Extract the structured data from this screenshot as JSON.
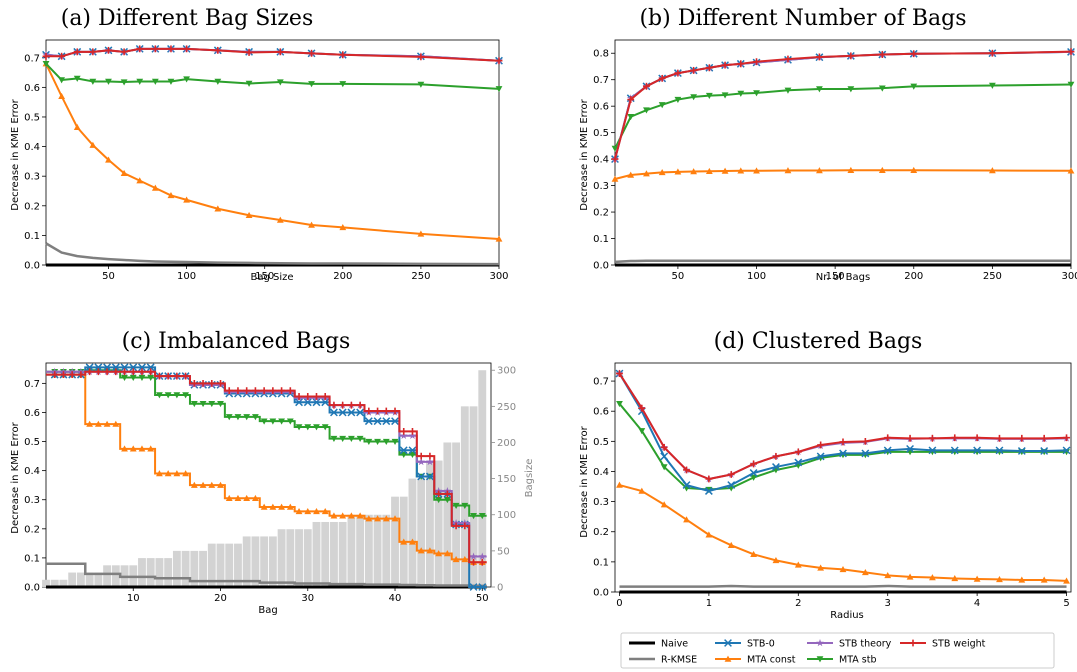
{
  "colors": {
    "Naive": "#000000",
    "R-KMSE": "#7f7f7f",
    "STB-0": "#1f77b4",
    "MTA const": "#ff7f0e",
    "STB theory": "#9467bd",
    "MTA stb": "#2ca02c",
    "STB weight": "#d62728",
    "bagsize_bars": "#d3d3d3"
  },
  "markers": {
    "Naive": "none",
    "R-KMSE": "none",
    "STB-0": "x",
    "MTA const": "triangle-up",
    "STB theory": "star",
    "MTA stb": "triangle-down",
    "STB weight": "plus"
  },
  "legend": {
    "placement": "bottom-right, below panel (d)",
    "items": [
      "Naive",
      "R-KMSE",
      "STB-0",
      "MTA const",
      "STB theory",
      "MTA stb",
      "STB weight"
    ]
  },
  "chart_data": [
    {
      "type": "line",
      "title": "(a) Different Bag Sizes",
      "xlabel": "Bag Size",
      "ylabel": "Decrease in KME Error",
      "xlim": [
        10,
        300
      ],
      "ylim": [
        0,
        0.76
      ],
      "xticks": [
        50,
        100,
        150,
        200,
        250,
        300
      ],
      "yticks": [
        0.0,
        0.1,
        0.2,
        0.3,
        0.4,
        0.5,
        0.6,
        0.7
      ],
      "x": [
        10,
        20,
        30,
        40,
        50,
        60,
        70,
        80,
        90,
        100,
        120,
        140,
        160,
        180,
        200,
        250,
        300
      ],
      "series": [
        {
          "name": "Naive",
          "values": [
            0,
            0,
            0,
            0,
            0,
            0,
            0,
            0,
            0,
            0,
            0,
            0,
            0,
            0,
            0,
            0,
            0
          ]
        },
        {
          "name": "R-KMSE",
          "values": [
            0.073,
            0.042,
            0.03,
            0.024,
            0.02,
            0.017,
            0.014,
            0.012,
            0.011,
            0.01,
            0.008,
            0.007,
            0.006,
            0.005,
            0.005,
            0.004,
            0.003
          ]
        },
        {
          "name": "STB-0",
          "values": [
            0.71,
            0.705,
            0.72,
            0.72,
            0.725,
            0.72,
            0.73,
            0.73,
            0.73,
            0.73,
            0.725,
            0.72,
            0.72,
            0.715,
            0.71,
            0.705,
            0.69
          ]
        },
        {
          "name": "MTA const",
          "values": [
            0.68,
            0.57,
            0.465,
            0.405,
            0.355,
            0.31,
            0.285,
            0.26,
            0.235,
            0.22,
            0.19,
            0.168,
            0.152,
            0.135,
            0.127,
            0.105,
            0.088
          ]
        },
        {
          "name": "STB theory",
          "values": [
            0.71,
            0.705,
            0.72,
            0.72,
            0.725,
            0.72,
            0.73,
            0.73,
            0.73,
            0.73,
            0.725,
            0.72,
            0.72,
            0.715,
            0.71,
            0.705,
            0.69
          ]
        },
        {
          "name": "MTA stb",
          "values": [
            0.68,
            0.625,
            0.63,
            0.62,
            0.62,
            0.618,
            0.62,
            0.62,
            0.62,
            0.628,
            0.62,
            0.613,
            0.618,
            0.612,
            0.612,
            0.61,
            0.595
          ]
        },
        {
          "name": "STB weight",
          "values": [
            0.705,
            0.705,
            0.72,
            0.72,
            0.725,
            0.72,
            0.73,
            0.73,
            0.73,
            0.73,
            0.725,
            0.718,
            0.72,
            0.715,
            0.71,
            0.703,
            0.69
          ]
        }
      ]
    },
    {
      "type": "line",
      "title": "(b) Different Number of Bags",
      "xlabel": "Nr. of Bags",
      "ylabel": "Decrease in KME Error",
      "xlim": [
        10,
        300
      ],
      "ylim": [
        0,
        0.85
      ],
      "xticks": [
        50,
        100,
        150,
        200,
        250,
        300
      ],
      "yticks": [
        0.0,
        0.1,
        0.2,
        0.3,
        0.4,
        0.5,
        0.6,
        0.7,
        0.8
      ],
      "x": [
        10,
        20,
        30,
        40,
        50,
        60,
        70,
        80,
        90,
        100,
        120,
        140,
        160,
        180,
        200,
        250,
        300
      ],
      "series": [
        {
          "name": "Naive",
          "values": [
            0,
            0,
            0,
            0,
            0,
            0,
            0,
            0,
            0,
            0,
            0,
            0,
            0,
            0,
            0,
            0,
            0
          ]
        },
        {
          "name": "R-KMSE",
          "values": [
            0.012,
            0.015,
            0.016,
            0.016,
            0.016,
            0.016,
            0.016,
            0.016,
            0.016,
            0.016,
            0.016,
            0.016,
            0.016,
            0.016,
            0.016,
            0.016,
            0.016
          ]
        },
        {
          "name": "STB-0",
          "values": [
            0.4,
            0.63,
            0.675,
            0.705,
            0.725,
            0.735,
            0.745,
            0.755,
            0.76,
            0.765,
            0.775,
            0.785,
            0.79,
            0.795,
            0.798,
            0.8,
            0.805
          ]
        },
        {
          "name": "MTA const",
          "values": [
            0.325,
            0.34,
            0.345,
            0.35,
            0.352,
            0.353,
            0.354,
            0.355,
            0.356,
            0.356,
            0.357,
            0.357,
            0.358,
            0.358,
            0.358,
            0.357,
            0.356
          ]
        },
        {
          "name": "STB theory",
          "values": [
            0.4,
            0.63,
            0.675,
            0.705,
            0.725,
            0.735,
            0.745,
            0.755,
            0.76,
            0.765,
            0.775,
            0.785,
            0.79,
            0.795,
            0.798,
            0.8,
            0.805
          ]
        },
        {
          "name": "MTA stb",
          "values": [
            0.44,
            0.56,
            0.585,
            0.605,
            0.625,
            0.635,
            0.64,
            0.642,
            0.648,
            0.65,
            0.66,
            0.665,
            0.665,
            0.668,
            0.675,
            0.678,
            0.682
          ]
        },
        {
          "name": "STB weight",
          "values": [
            0.4,
            0.625,
            0.675,
            0.705,
            0.725,
            0.735,
            0.745,
            0.755,
            0.76,
            0.768,
            0.778,
            0.786,
            0.79,
            0.795,
            0.798,
            0.8,
            0.806
          ]
        }
      ]
    },
    {
      "type": "line",
      "title": "(c) Imbalanced Bags",
      "xlabel": "Bag",
      "ylabel": "Decrease in KME Error",
      "ylabel2": "Bagsize",
      "xlim": [
        0,
        51
      ],
      "ylim": [
        0,
        0.77
      ],
      "ylim2": [
        0,
        310
      ],
      "xticks": [
        10,
        20,
        30,
        40,
        50
      ],
      "yticks": [
        0.0,
        0.1,
        0.2,
        0.3,
        0.4,
        0.5,
        0.6,
        0.7
      ],
      "yticks2": [
        0,
        50,
        100,
        150,
        200,
        250,
        300
      ],
      "step_edges": [
        0,
        4.5,
        8.5,
        12.5,
        16.5,
        20.5,
        24.5,
        28.5,
        32.5,
        36.5,
        40.5,
        42.5,
        44.5,
        46.5,
        48.5,
        50.5
      ],
      "bag_sizes": [
        10,
        10,
        10,
        20,
        20,
        20,
        20,
        30,
        30,
        30,
        30,
        40,
        40,
        40,
        40,
        50,
        50,
        50,
        50,
        60,
        60,
        60,
        60,
        70,
        70,
        70,
        70,
        80,
        80,
        80,
        80,
        90,
        90,
        90,
        90,
        100,
        100,
        100,
        100,
        100,
        125,
        125,
        150,
        150,
        175,
        175,
        200,
        200,
        250,
        250,
        300
      ],
      "series": [
        {
          "name": "Naive",
          "values": [
            0,
            0,
            0,
            0,
            0,
            0,
            0,
            0,
            0,
            0,
            0,
            0,
            0,
            0,
            0
          ]
        },
        {
          "name": "R-KMSE",
          "values": [
            0.08,
            0.045,
            0.035,
            0.03,
            0.02,
            0.02,
            0.015,
            0.012,
            0.01,
            0.008,
            0.007,
            0.006,
            0.005,
            0.005,
            0.004
          ]
        },
        {
          "name": "STB-0",
          "values": [
            0.73,
            0.755,
            0.755,
            0.725,
            0.695,
            0.665,
            0.665,
            0.635,
            0.6,
            0.57,
            0.47,
            0.38,
            0.32,
            0.215,
            0.0
          ]
        },
        {
          "name": "MTA const",
          "values": [
            0.73,
            0.56,
            0.475,
            0.39,
            0.35,
            0.305,
            0.275,
            0.26,
            0.245,
            0.235,
            0.155,
            0.125,
            0.115,
            0.095,
            0.085
          ]
        },
        {
          "name": "STB theory",
          "values": [
            0.74,
            0.74,
            0.74,
            0.725,
            0.695,
            0.67,
            0.67,
            0.65,
            0.625,
            0.6,
            0.52,
            0.43,
            0.33,
            0.22,
            0.105
          ]
        },
        {
          "name": "MTA stb",
          "values": [
            0.74,
            0.745,
            0.72,
            0.66,
            0.63,
            0.585,
            0.57,
            0.55,
            0.51,
            0.5,
            0.455,
            0.38,
            0.3,
            0.28,
            0.245
          ]
        },
        {
          "name": "STB weight",
          "values": [
            0.73,
            0.74,
            0.74,
            0.725,
            0.7,
            0.675,
            0.675,
            0.655,
            0.625,
            0.605,
            0.535,
            0.45,
            0.32,
            0.21,
            0.085
          ]
        }
      ]
    },
    {
      "type": "line",
      "title": "(d) Clustered Bags",
      "xlabel": "Radius",
      "ylabel": "Decrease in KME Error",
      "xlim": [
        -0.05,
        5.05
      ],
      "ylim": [
        0,
        0.76
      ],
      "xticks": [
        0,
        1,
        2,
        3,
        4,
        5
      ],
      "yticks": [
        0.0,
        0.1,
        0.2,
        0.3,
        0.4,
        0.5,
        0.6,
        0.7
      ],
      "x": [
        0,
        0.25,
        0.5,
        0.75,
        1.0,
        1.25,
        1.5,
        1.75,
        2.0,
        2.25,
        2.5,
        2.75,
        3.0,
        3.25,
        3.5,
        3.75,
        4.0,
        4.25,
        4.5,
        4.75,
        5.0
      ],
      "series": [
        {
          "name": "Naive",
          "values": [
            0,
            0,
            0,
            0,
            0,
            0,
            0,
            0,
            0,
            0,
            0,
            0,
            0,
            0,
            0,
            0,
            0,
            0,
            0,
            0,
            0
          ]
        },
        {
          "name": "R-KMSE",
          "values": [
            0.018,
            0.018,
            0.018,
            0.018,
            0.018,
            0.02,
            0.018,
            0.018,
            0.018,
            0.018,
            0.018,
            0.018,
            0.02,
            0.018,
            0.018,
            0.018,
            0.018,
            0.018,
            0.018,
            0.018,
            0.018
          ]
        },
        {
          "name": "STB-0",
          "values": [
            0.725,
            0.6,
            0.45,
            0.355,
            0.335,
            0.355,
            0.395,
            0.415,
            0.43,
            0.45,
            0.46,
            0.46,
            0.47,
            0.475,
            0.47,
            0.47,
            0.47,
            0.47,
            0.468,
            0.468,
            0.47
          ]
        },
        {
          "name": "MTA const",
          "values": [
            0.355,
            0.335,
            0.29,
            0.24,
            0.19,
            0.155,
            0.125,
            0.105,
            0.09,
            0.08,
            0.075,
            0.065,
            0.055,
            0.05,
            0.048,
            0.045,
            0.043,
            0.042,
            0.04,
            0.04,
            0.037
          ]
        },
        {
          "name": "STB theory",
          "values": [
            0.725,
            0.61,
            0.48,
            0.405,
            0.375,
            0.39,
            0.425,
            0.45,
            0.465,
            0.485,
            0.495,
            0.498,
            0.51,
            0.508,
            0.51,
            0.51,
            0.51,
            0.508,
            0.508,
            0.508,
            0.51
          ]
        },
        {
          "name": "MTA stb",
          "values": [
            0.625,
            0.535,
            0.415,
            0.345,
            0.34,
            0.345,
            0.38,
            0.405,
            0.42,
            0.445,
            0.455,
            0.455,
            0.465,
            0.465,
            0.465,
            0.465,
            0.465,
            0.465,
            0.465,
            0.465,
            0.465
          ]
        },
        {
          "name": "STB weight",
          "values": [
            0.725,
            0.61,
            0.48,
            0.405,
            0.375,
            0.39,
            0.425,
            0.45,
            0.465,
            0.488,
            0.498,
            0.5,
            0.512,
            0.51,
            0.51,
            0.512,
            0.512,
            0.51,
            0.51,
            0.51,
            0.512
          ]
        }
      ]
    }
  ]
}
